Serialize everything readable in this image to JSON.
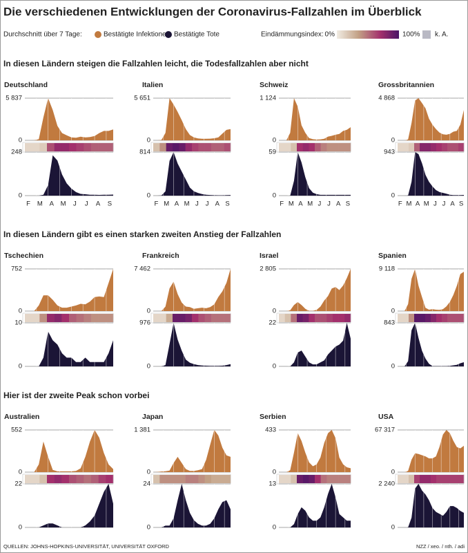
{
  "title": "Die verschiedenen Entwicklungen der Coronavirus-Fallzahlen im Überblick",
  "legend": {
    "label": "Durchschnitt über 7 Tage:",
    "items": [
      {
        "name": "Bestätigte Infektionen",
        "color": "#c17a3f"
      },
      {
        "name": "Bestätigte Tote",
        "color": "#1b1536"
      }
    ],
    "index_label": "Eindämmungsindex:",
    "index_min": {
      "value": 0,
      "label": "0%"
    },
    "index_max": {
      "value": 100,
      "label": "100%"
    },
    "na_label": "k. A."
  },
  "months": [
    "F",
    "M",
    "A",
    "M",
    "J",
    "J",
    "A",
    "S"
  ],
  "sections": [
    {
      "heading": "In diesen Ländern steigen die Fallzahlen leicht, die Todesfallzahlen aber nicht",
      "charts": [
        {
          "type": "area",
          "title": "Deutschland",
          "cases": {
            "ylim": [
              0,
              5837
            ],
            "yticks": [
              0,
              {
                "value": 5837,
                "label": "5 837"
              }
            ],
            "values": [
              0,
              0,
              10,
              150,
              3200,
              5837,
              4200,
              2000,
              1000,
              700,
              400,
              350,
              500,
              400,
              450,
              600,
              1000,
              1300,
              1300,
              1500
            ]
          },
          "deaths": {
            "ylim": [
              0,
              248
            ],
            "yticks": [
              0,
              248
            ],
            "values": [
              0,
              0,
              0,
              0,
              5,
              60,
              230,
              200,
              120,
              70,
              40,
              20,
              10,
              8,
              5,
              5,
              4,
              5,
              5,
              6
            ]
          },
          "index": [
            10,
            10,
            15,
            60,
            75,
            75,
            70,
            65,
            60,
            55,
            55,
            55
          ]
        },
        {
          "type": "area",
          "title": "Italien",
          "cases": {
            "ylim": [
              0,
              5651
            ],
            "yticks": [
              0,
              {
                "value": 5651,
                "label": "5 651"
              }
            ],
            "values": [
              0,
              0,
              50,
              1000,
              5651,
              4800,
              3800,
              2700,
              1500,
              700,
              400,
              250,
              200,
              200,
              220,
              280,
              400,
              900,
              1400,
              1500
            ]
          },
          "deaths": {
            "ylim": [
              0,
              814
            ],
            "yticks": [
              0,
              814
            ],
            "values": [
              0,
              0,
              2,
              80,
              650,
              814,
              600,
              450,
              300,
              150,
              80,
              50,
              30,
              15,
              12,
              8,
              6,
              6,
              10,
              12
            ]
          },
          "index": [
            20,
            40,
            90,
            95,
            90,
            75,
            65,
            60,
            60,
            55,
            55,
            60
          ]
        },
        {
          "type": "area",
          "title": "Schweiz",
          "cases": {
            "ylim": [
              0,
              1124
            ],
            "yticks": [
              0,
              {
                "value": 1124,
                "label": "1 124"
              }
            ],
            "values": [
              0,
              0,
              0,
              200,
              1124,
              900,
              400,
              200,
              60,
              30,
              20,
              25,
              40,
              100,
              120,
              150,
              170,
              250,
              280,
              350
            ]
          },
          "deaths": {
            "ylim": [
              0,
              59
            ],
            "yticks": [
              0,
              59
            ],
            "values": [
              0,
              0,
              0,
              0,
              20,
              59,
              45,
              25,
              10,
              4,
              2,
              1,
              1,
              1,
              1,
              1,
              1,
              1,
              1,
              1
            ]
          },
          "index": [
            10,
            10,
            20,
            70,
            75,
            70,
            55,
            45,
            40,
            40,
            40,
            40
          ]
        },
        {
          "type": "area",
          "title": "Grossbritannien",
          "cases": {
            "ylim": [
              0,
              4868
            ],
            "yticks": [
              0,
              {
                "value": 4868,
                "label": "4 868"
              }
            ],
            "values": [
              0,
              0,
              0,
              100,
              2000,
              4600,
              4868,
              4300,
              3700,
              2500,
              1800,
              1300,
              900,
              700,
              650,
              750,
              1000,
              1100,
              1800,
              3500
            ]
          },
          "deaths": {
            "ylim": [
              0,
              943
            ],
            "yticks": [
              0,
              943
            ],
            "values": [
              0,
              0,
              0,
              5,
              300,
              943,
              900,
              700,
              450,
              300,
              200,
              120,
              80,
              60,
              40,
              20,
              12,
              10,
              10,
              15
            ]
          },
          "index": [
            10,
            10,
            15,
            55,
            80,
            80,
            75,
            70,
            65,
            60,
            60,
            65
          ]
        }
      ]
    },
    {
      "heading": "In diesen Ländern gibt es einen starken zweiten Anstieg der Fallzahlen",
      "charts": [
        {
          "type": "area",
          "title": "Tschechien",
          "cases": {
            "ylim": [
              0,
              752
            ],
            "yticks": [
              0,
              752
            ],
            "values": [
              0,
              0,
              0,
              100,
              280,
              280,
              200,
              100,
              60,
              60,
              80,
              100,
              130,
              120,
              170,
              250,
              260,
              250,
              500,
              752
            ]
          },
          "deaths": {
            "ylim": [
              0,
              10
            ],
            "yticks": [
              0,
              10
            ],
            "values": [
              0,
              0,
              0,
              0,
              2,
              8,
              6,
              5,
              3,
              2,
              2,
              1,
              1,
              2,
              1,
              1,
              1,
              1,
              3,
              6
            ]
          },
          "index": [
            10,
            10,
            40,
            75,
            80,
            70,
            55,
            50,
            45,
            40,
            40,
            40
          ]
        },
        {
          "type": "area",
          "title": "Frankreich",
          "cases": {
            "ylim": [
              0,
              7462
            ],
            "yticks": [
              0,
              {
                "value": 7462,
                "label": "7 462"
              }
            ],
            "values": [
              0,
              0,
              0,
              800,
              4000,
              5200,
              3000,
              1500,
              800,
              700,
              400,
              500,
              600,
              500,
              700,
              1200,
              2500,
              3500,
              5000,
              7462
            ]
          },
          "deaths": {
            "ylim": [
              0,
              976
            ],
            "yticks": [
              0,
              976
            ],
            "values": [
              0,
              0,
              0,
              30,
              500,
              976,
              600,
              350,
              150,
              80,
              50,
              30,
              20,
              15,
              12,
              12,
              12,
              15,
              30,
              50
            ]
          },
          "index": [
            10,
            10,
            30,
            90,
            90,
            85,
            70,
            60,
            55,
            50,
            50,
            50
          ]
        },
        {
          "type": "area",
          "title": "Israel",
          "cases": {
            "ylim": [
              0,
              2805
            ],
            "yticks": [
              0,
              {
                "value": 2805,
                "label": "2 805"
              }
            ],
            "values": [
              0,
              0,
              0,
              50,
              400,
              600,
              400,
              150,
              20,
              20,
              80,
              300,
              700,
              1000,
              1500,
              1600,
              1400,
              1700,
              2200,
              2805
            ]
          },
          "deaths": {
            "ylim": [
              0,
              22
            ],
            "yticks": [
              0,
              22
            ],
            "values": [
              0,
              0,
              0,
              0,
              2,
              7,
              8,
              5,
              2,
              1,
              1,
              2,
              3,
              6,
              8,
              10,
              11,
              13,
              22,
              14
            ]
          },
          "index": [
            10,
            20,
            50,
            90,
            85,
            70,
            60,
            60,
            65,
            70,
            70,
            75
          ]
        },
        {
          "type": "area",
          "title": "Spanien",
          "cases": {
            "ylim": [
              0,
              9118
            ],
            "yticks": [
              0,
              {
                "value": 9118,
                "label": "9 118"
              }
            ],
            "values": [
              0,
              0,
              0,
              1500,
              7000,
              9118,
              5500,
              3000,
              700,
              300,
              400,
              300,
              250,
              400,
              1000,
              2000,
              3500,
              5500,
              8000,
              8500
            ]
          },
          "deaths": {
            "ylim": [
              0,
              843
            ],
            "yticks": [
              0,
              843
            ],
            "values": [
              0,
              0,
              0,
              100,
              700,
              843,
              550,
              300,
              150,
              50,
              5,
              5,
              5,
              5,
              5,
              10,
              20,
              30,
              60,
              80
            ]
          },
          "index": [
            10,
            10,
            40,
            95,
            95,
            90,
            80,
            70,
            65,
            60,
            60,
            60
          ]
        }
      ]
    },
    {
      "heading": "Hier ist der zweite Peak schon vorbei",
      "charts": [
        {
          "type": "area",
          "title": "Australien",
          "cases": {
            "ylim": [
              0,
              552
            ],
            "yticks": [
              0,
              552
            ],
            "values": [
              0,
              0,
              0,
              100,
              400,
              200,
              30,
              10,
              10,
              10,
              10,
              15,
              50,
              200,
              400,
              552,
              450,
              250,
              100,
              40
            ]
          },
          "deaths": {
            "ylim": [
              0,
              22
            ],
            "yticks": [
              0,
              22
            ],
            "values": [
              0,
              0,
              0,
              0,
              1,
              2,
              2,
              1,
              0,
              0,
              0,
              0,
              0,
              1,
              3,
              6,
              12,
              18,
              22,
              12
            ]
          },
          "index": [
            10,
            10,
            20,
            70,
            75,
            70,
            60,
            55,
            50,
            55,
            65,
            70
          ]
        },
        {
          "type": "area",
          "title": "Japan",
          "cases": {
            "ylim": [
              0,
              1381
            ],
            "yticks": [
              0,
              {
                "value": 1381,
                "label": "1 381"
              }
            ],
            "values": [
              0,
              5,
              20,
              30,
              50,
              300,
              500,
              300,
              100,
              40,
              40,
              60,
              100,
              400,
              900,
              1381,
              1200,
              800,
              550,
              500
            ]
          },
          "deaths": {
            "ylim": [
              0,
              24
            ],
            "yticks": [
              0,
              24
            ],
            "values": [
              0,
              0,
              0,
              1,
              1,
              5,
              15,
              24,
              15,
              8,
              4,
              2,
              1,
              1,
              2,
              5,
              10,
              14,
              15,
              10
            ]
          },
          "index": [
            20,
            40,
            40,
            40,
            40,
            45,
            45,
            40,
            35,
            30,
            30,
            30
          ]
        },
        {
          "type": "area",
          "title": "Serbien",
          "cases": {
            "ylim": [
              0,
              433
            ],
            "yticks": [
              0,
              433
            ],
            "values": [
              0,
              0,
              0,
              20,
              200,
              400,
              320,
              200,
              100,
              60,
              80,
              150,
              300,
              400,
              433,
              350,
              150,
              80,
              50,
              40
            ]
          },
          "deaths": {
            "ylim": [
              0,
              13
            ],
            "yticks": [
              0,
              13
            ],
            "values": [
              0,
              0,
              0,
              0,
              1,
              4,
              6,
              5,
              3,
              2,
              2,
              3,
              6,
              10,
              13,
              9,
              4,
              3,
              2,
              2
            ]
          },
          "index": [
            10,
            10,
            20,
            90,
            95,
            90,
            70,
            50,
            45,
            45,
            45,
            45
          ]
        },
        {
          "type": "area",
          "title": "USA",
          "cases": {
            "ylim": [
              0,
              67317
            ],
            "yticks": [
              0,
              {
                "value": 67317,
                "label": "67 317"
              }
            ],
            "values": [
              0,
              0,
              0,
              2000,
              20000,
              30000,
              29000,
              27000,
              25000,
              22000,
              22000,
              25000,
              40000,
              60000,
              67317,
              62000,
              50000,
              40000,
              38000,
              42000
            ]
          },
          "deaths": {
            "ylim": [
              0,
              2240
            ],
            "yticks": [
              0,
              {
                "value": 2240,
                "label": "2 240"
              }
            ],
            "values": [
              0,
              0,
              0,
              5,
              500,
              2000,
              2240,
              1900,
              1700,
              1400,
              1000,
              800,
              700,
              600,
              800,
              1100,
              1100,
              1000,
              850,
              750
            ]
          },
          "index": [
            10,
            10,
            20,
            65,
            75,
            75,
            70,
            65,
            65,
            65,
            65,
            65
          ]
        }
      ]
    }
  ],
  "footer": {
    "source": "QUELLEN: JOHNS-HOPKINS-UNIVERSITÄT, UNIVERSITÄT OXFORD",
    "credit": "NZZ / xeo. / nth. / adi"
  }
}
